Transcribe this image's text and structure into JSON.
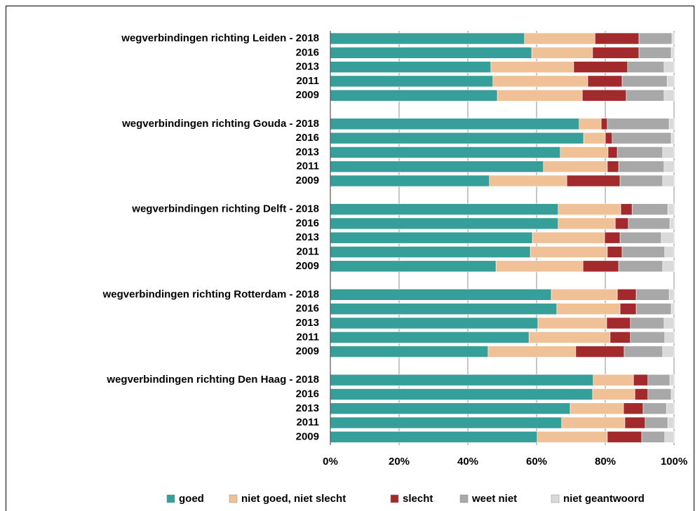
{
  "chart_data": {
    "type": "stacked-barh",
    "categories": [
      "wegverbindingen richting Leiden - 2018",
      "2016",
      "2013",
      "2011",
      "2009",
      null,
      "wegverbindingen richting Gouda - 2018",
      "2016",
      "2013",
      "2011",
      "2009",
      null,
      "wegverbindingen richting Delft - 2018",
      "2016",
      "2013",
      "2011",
      "2009",
      null,
      "wegverbindingen richting Rotterdam - 2018",
      "2016",
      "2013",
      "2011",
      "2009",
      null,
      "wegverbindingen richting Den Haag - 2018",
      "2016",
      "2013",
      "2011",
      "2009"
    ],
    "series": [
      {
        "name": "goed",
        "color": "#369f99",
        "values": [
          56.5,
          58.6,
          46.7,
          47.3,
          48.6,
          null,
          72.4,
          73.7,
          66.9,
          62,
          46.3,
          null,
          66.3,
          66.3,
          58.8,
          58.2,
          48.2,
          null,
          64.3,
          65.9,
          60.4,
          57.8,
          45.9,
          null,
          76.5,
          76.3,
          69.8,
          67.3,
          60.2
        ]
      },
      {
        "name": "niet goed, niet slecht",
        "color": "#f0c196",
        "values": [
          20.5,
          17.7,
          24.1,
          27.6,
          24.7,
          null,
          6.4,
          6.3,
          13.9,
          18.6,
          22.5,
          null,
          18.2,
          16.6,
          21,
          22.4,
          25.3,
          null,
          19.2,
          18.4,
          20,
          23.6,
          25.5,
          null,
          11.7,
          12.3,
          15.5,
          18.4,
          20.4
        ]
      },
      {
        "name": "slecht",
        "color": "#a32a2c",
        "values": [
          12.8,
          13.5,
          15.7,
          10,
          12.8,
          null,
          1.8,
          2,
          2.7,
          3.3,
          15.5,
          null,
          3.3,
          3.8,
          4.5,
          4.3,
          10.4,
          null,
          5.5,
          4.7,
          6.9,
          5.9,
          14.1,
          null,
          4.2,
          3.8,
          5.7,
          5.9,
          10
        ]
      },
      {
        "name": "weet niet",
        "color": "#a8a8a8",
        "values": [
          9.6,
          9.4,
          10.6,
          13.1,
          11,
          null,
          18,
          17.2,
          13.2,
          13.2,
          12.4,
          null,
          10.4,
          12.1,
          12,
          12.4,
          12.8,
          null,
          9.6,
          10.2,
          9.8,
          10,
          11.2,
          null,
          6.4,
          6.8,
          6.8,
          6.6,
          6.7
        ]
      },
      {
        "name": "niet geantwoord",
        "color": "#dadada",
        "values": [
          0.6,
          0.8,
          2.9,
          2,
          2.9,
          null,
          1.4,
          0.8,
          3.3,
          2.9,
          3.3,
          null,
          1.8,
          1.2,
          3.7,
          2.7,
          3.3,
          null,
          1.4,
          0.8,
          2.9,
          2.7,
          3.3,
          null,
          1.2,
          0.8,
          2.2,
          1.8,
          2.7
        ]
      }
    ],
    "xlim": [
      0,
      100
    ],
    "xticks": [
      {
        "value": 0,
        "label": "0%"
      },
      {
        "value": 20,
        "label": "20%"
      },
      {
        "value": 40,
        "label": "40%"
      },
      {
        "value": 60,
        "label": "60%"
      },
      {
        "value": 80,
        "label": "80%"
      },
      {
        "value": 100,
        "label": "100%"
      }
    ],
    "grid": true,
    "legend": "bottom"
  }
}
